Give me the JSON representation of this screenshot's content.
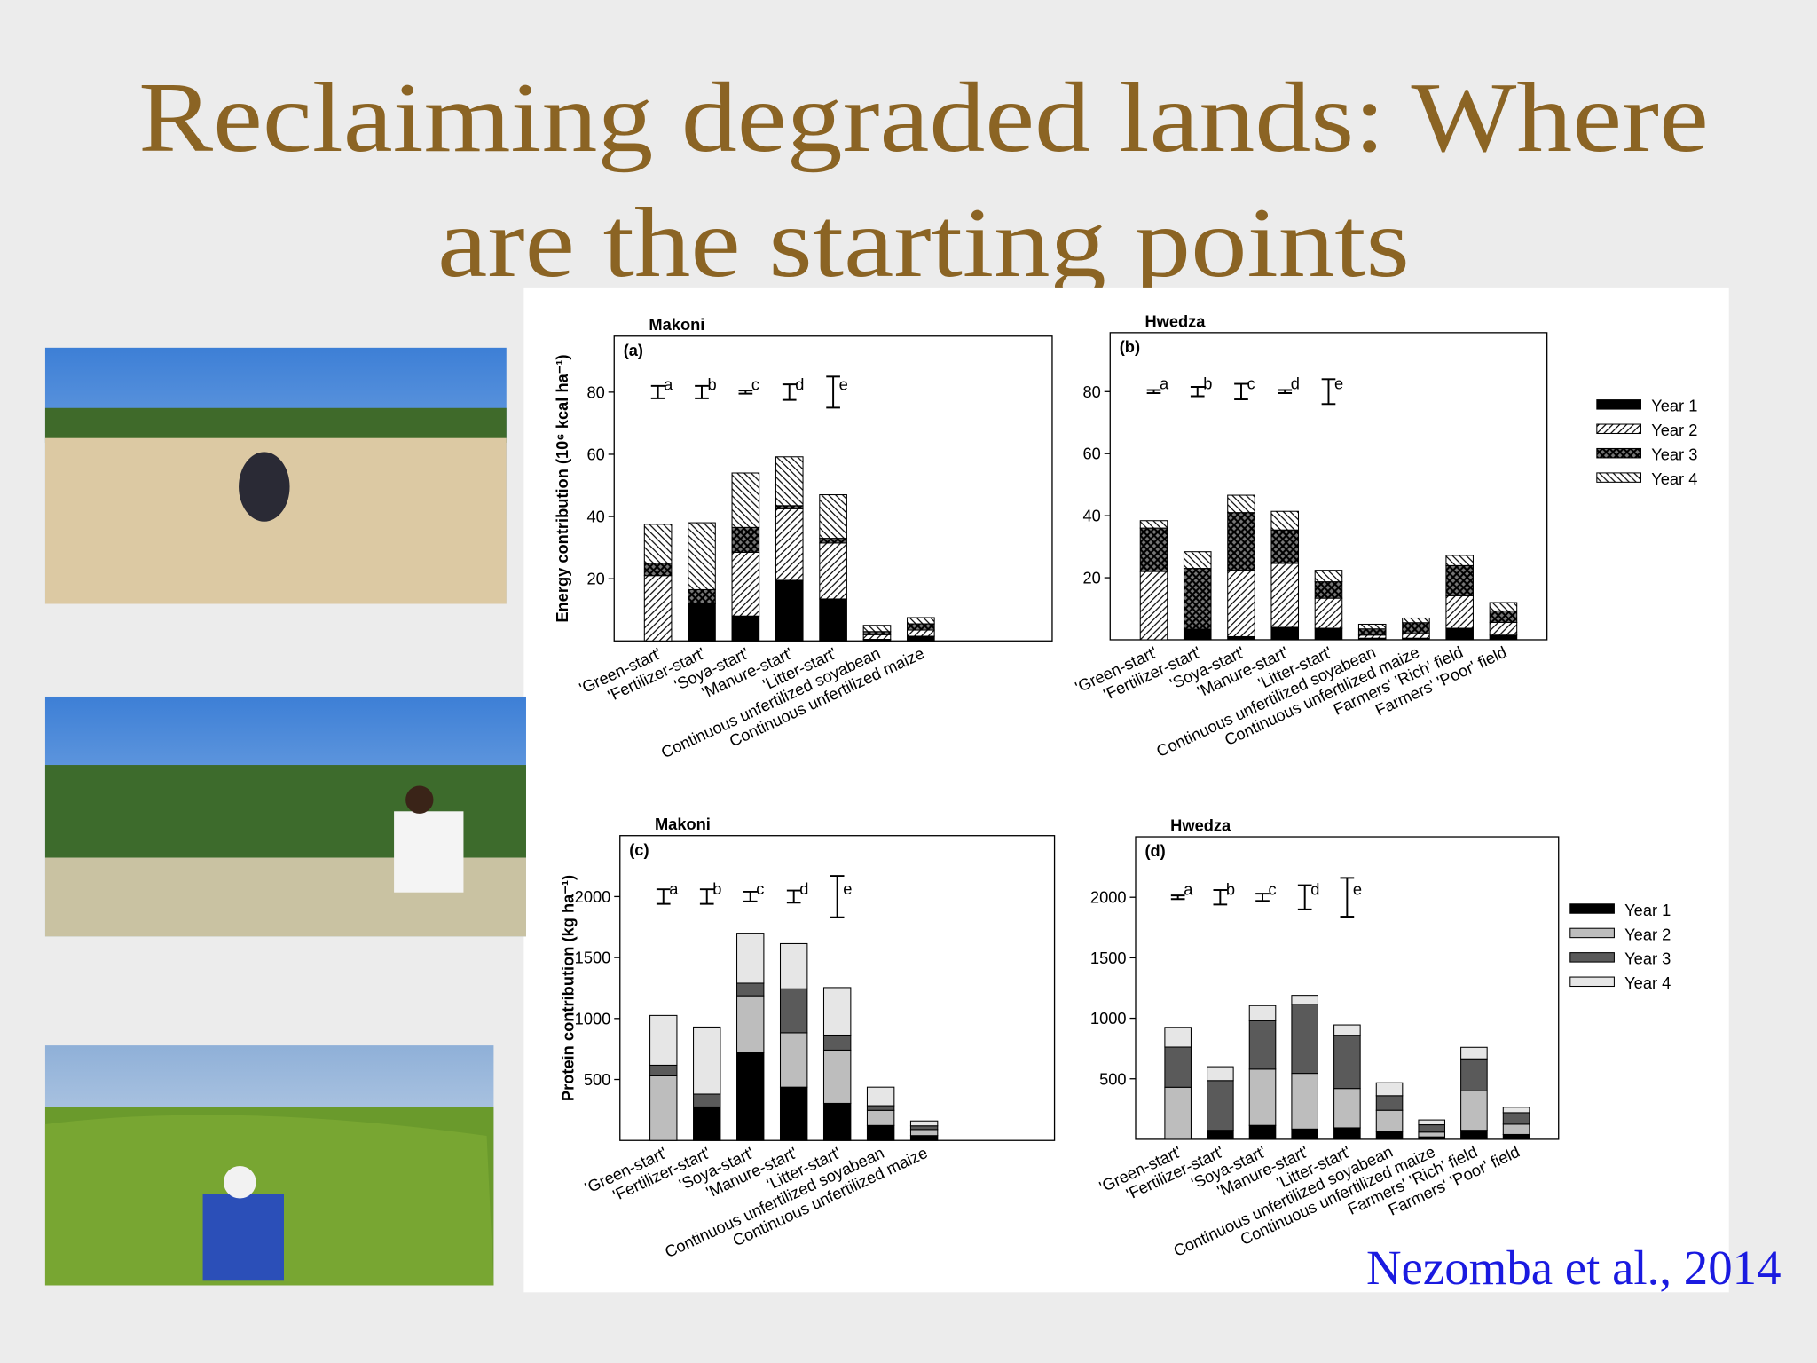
{
  "slide": {
    "title_lines": [
      "Reclaiming degraded lands: Where",
      "are the starting points"
    ],
    "citation": "Nezomba et al., 2014"
  },
  "chart_data": [
    {
      "type": "bar",
      "stacked": true,
      "title": "Makoni",
      "panel": "(a)",
      "ylabel": "Energy contribution (10⁶ kcal ha⁻¹)",
      "categories": [
        "'Green-start'",
        "'Fertilizer-start'",
        "'Soya-start'",
        "'Manure-start'",
        "'Litter-start'",
        "Continuous unfertilized soyabean",
        "Continuous unfertilized maize",
        null,
        null
      ],
      "series": [
        {
          "name": "Year 1",
          "color": "#000000",
          "pattern": "solid",
          "values": [
            0,
            12,
            8,
            19.5,
            13.5,
            0.5,
            1.5,
            null,
            null
          ]
        },
        {
          "name": "Year 2",
          "color": "#000000",
          "pattern": "hatch-right",
          "values": [
            21,
            0,
            20.5,
            23,
            18,
            1.5,
            2,
            null,
            null
          ]
        },
        {
          "name": "Year 3",
          "color": "#000000",
          "pattern": "crosshatch",
          "values": [
            4,
            4.5,
            8,
            1,
            1.5,
            1,
            2,
            null,
            null
          ]
        },
        {
          "name": "Year 4",
          "color": "#000000",
          "pattern": "hatch-left",
          "values": [
            12.5,
            21.5,
            17.5,
            15.7,
            14,
            2,
            2,
            null,
            null
          ]
        }
      ],
      "lsd": [
        {
          "label": "a",
          "y": 80,
          "err": 2
        },
        {
          "label": "b",
          "y": 80,
          "err": 2
        },
        {
          "label": "c",
          "y": 80,
          "err": 0.5
        },
        {
          "label": "d",
          "y": 80,
          "err": 2.5
        },
        {
          "label": "e",
          "y": 80,
          "err": 5
        }
      ],
      "ylim": [
        0,
        98
      ],
      "yticks": [
        20,
        40,
        60,
        80
      ]
    },
    {
      "type": "bar",
      "stacked": true,
      "title": "Hwedza",
      "panel": "(b)",
      "legend": "right",
      "categories": [
        "'Green-start'",
        "'Fertilizer-start'",
        "'Soya-start'",
        "'Manure-start'",
        "'Litter-start'",
        "Continuous unfertilized soyabean",
        "Continuous unfertilized maize",
        "Farmers' 'Rich' field",
        "Farmers' 'Poor' field"
      ],
      "series": [
        {
          "name": "Year 1",
          "color": "#000000",
          "pattern": "solid",
          "values": [
            0,
            3.4,
            1,
            4,
            3.7,
            0.5,
            0.5,
            3.7,
            1.5
          ]
        },
        {
          "name": "Year 2",
          "color": "#000000",
          "pattern": "hatch-right",
          "values": [
            22,
            0,
            21.4,
            20.6,
            9.7,
            1,
            1.5,
            10.5,
            4.1
          ]
        },
        {
          "name": "Year 3",
          "color": "#000000",
          "pattern": "crosshatch",
          "values": [
            14,
            19.6,
            18.6,
            10.8,
            5.3,
            2,
            3.5,
            9.7,
            3.7
          ]
        },
        {
          "name": "Year 4",
          "color": "#000000",
          "pattern": "hatch-left",
          "values": [
            2.4,
            5.4,
            5.6,
            6,
            3.7,
            1.5,
            1.5,
            3.3,
            2.7
          ]
        }
      ],
      "lsd": [
        {
          "label": "a",
          "y": 80,
          "err": 0.5
        },
        {
          "label": "b",
          "y": 80,
          "err": 1.5
        },
        {
          "label": "c",
          "y": 80,
          "err": 2.5
        },
        {
          "label": "d",
          "y": 80,
          "err": 0.5
        },
        {
          "label": "e",
          "y": 80,
          "err": 4
        }
      ],
      "ylim": [
        0,
        99
      ],
      "yticks": [
        20,
        40,
        60,
        80
      ]
    },
    {
      "type": "bar",
      "stacked": true,
      "title": "Makoni",
      "panel": "(c)",
      "ylabel": "Protein contribution (kg ha⁻¹)",
      "categories": [
        "'Green-start'",
        "'Fertilizer-start'",
        "'Soya-start'",
        "'Manure-start'",
        "'Litter-start'",
        "Continuous unfertilized soyabean",
        "Continuous unfertilized maize",
        null,
        null
      ],
      "series": [
        {
          "name": "Year 1",
          "color": "#000000",
          "pattern": "solid",
          "values": [
            0,
            275,
            720,
            437,
            304,
            123,
            40,
            null,
            null
          ]
        },
        {
          "name": "Year 2",
          "color": "#bdbdbd",
          "pattern": "solid",
          "values": [
            530,
            0,
            467,
            446,
            437,
            124,
            50,
            null,
            null
          ]
        },
        {
          "name": "Year 3",
          "color": "#5a5a5a",
          "pattern": "solid",
          "values": [
            87,
            105,
            103,
            361,
            123,
            38,
            30,
            null,
            null
          ]
        },
        {
          "name": "Year 4",
          "color": "#e6e6e6",
          "pattern": "solid",
          "values": [
            408,
            550,
            410,
            370,
            390,
            152,
            40,
            null,
            null
          ]
        }
      ],
      "lsd": [
        {
          "label": "a",
          "y": 2000,
          "err": 60
        },
        {
          "label": "b",
          "y": 2000,
          "err": 60
        },
        {
          "label": "c",
          "y": 2000,
          "err": 40
        },
        {
          "label": "d",
          "y": 2000,
          "err": 50
        },
        {
          "label": "e",
          "y": 2000,
          "err": 170
        }
      ],
      "ylim": [
        0,
        2500
      ],
      "yticks": [
        500,
        1000,
        1500,
        2000
      ]
    },
    {
      "type": "bar",
      "stacked": true,
      "title": "Hwedza",
      "panel": "(d)",
      "legend": "right",
      "categories": [
        "'Green-start'",
        "'Fertilizer-start'",
        "'Soya-start'",
        "'Manure-start'",
        "'Litter-start'",
        "Continuous unfertilized soyabean",
        "Continuous unfertilized maize",
        "Farmers' 'Rich' field",
        "Farmers' 'Poor' field"
      ],
      "series": [
        {
          "name": "Year 1",
          "color": "#000000",
          "pattern": "solid",
          "values": [
            0,
            75,
            115,
            85,
            95,
            65,
            20,
            75,
            40
          ]
        },
        {
          "name": "Year 2",
          "color": "#bdbdbd",
          "pattern": "solid",
          "values": [
            430,
            0,
            465,
            460,
            325,
            175,
            40,
            325,
            85
          ]
        },
        {
          "name": "Year 3",
          "color": "#5a5a5a",
          "pattern": "solid",
          "values": [
            332,
            410,
            400,
            570,
            440,
            120,
            60,
            265,
            95
          ]
        },
        {
          "name": "Year 4",
          "color": "#e6e6e6",
          "pattern": "solid",
          "values": [
            163,
            115,
            125,
            75,
            85,
            107,
            40,
            95,
            45
          ]
        }
      ],
      "lsd": [
        {
          "label": "a",
          "y": 2000,
          "err": 15
        },
        {
          "label": "b",
          "y": 2000,
          "err": 60
        },
        {
          "label": "c",
          "y": 2000,
          "err": 30
        },
        {
          "label": "d",
          "y": 2000,
          "err": 100
        },
        {
          "label": "e",
          "y": 2000,
          "err": 160
        }
      ],
      "ylim": [
        0,
        2500
      ],
      "yticks": [
        500,
        1000,
        1500,
        2000
      ]
    }
  ]
}
